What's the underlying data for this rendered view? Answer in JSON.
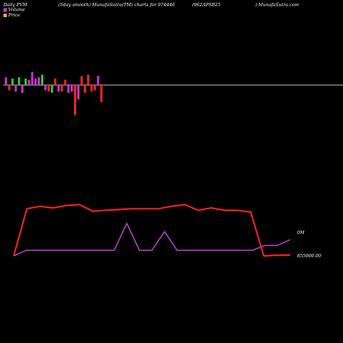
{
  "header": {
    "left": "Daily PVM",
    "middle": "(5day smooth) MunafaSutra(TM) charts for 974446",
    "symbol": "(962APSB25",
    "right": ") MunafaSutra.com"
  },
  "legend": [
    {
      "label": "Volume",
      "color": "#cc33cc"
    },
    {
      "label": "Price",
      "color": "#ff9966"
    }
  ],
  "colors": {
    "background": "#000000",
    "baseline": "#cccccc",
    "up": "#cc33cc",
    "down": "#ff2222",
    "neutral": "#33cc33",
    "price_line": "#ff2020",
    "volume_line": "#bb44cc"
  },
  "chart_data": [
    {
      "type": "bar",
      "description_scale": "relative",
      "values": [
        0.6,
        -0.4,
        0.5,
        -0.5,
        0.6,
        -0.6,
        0.5,
        0.4,
        1.0,
        0.5,
        0.6,
        0.8,
        -0.4,
        -0.5,
        -0.6,
        0.5,
        -0.5,
        -0.5,
        0.4,
        -0.6,
        -0.5,
        -2.3,
        -1.1,
        0.7,
        -0.6,
        0.8,
        -0.5,
        -0.4,
        0.7,
        -1.3
      ],
      "bar_colors": [
        "up",
        "down",
        "neutral",
        "up",
        "neutral",
        "up",
        "neutral",
        "up",
        "up",
        "up",
        "up",
        "neutral",
        "up",
        "down",
        "neutral",
        "down",
        "up",
        "down",
        "down",
        "up",
        "up",
        "down",
        "up",
        "down",
        "down",
        "down",
        "down",
        "down",
        "up",
        "down"
      ]
    },
    {
      "type": "line",
      "series": [
        {
          "name": "Price",
          "values": [
            10,
            68,
            71,
            69,
            72,
            73,
            65,
            66,
            67,
            68,
            68,
            68,
            71,
            73,
            66,
            69,
            66,
            66,
            64,
            10,
            11,
            11
          ]
        },
        {
          "name": "Volume",
          "values": [
            10,
            17,
            17,
            17,
            17,
            17,
            17,
            17,
            17,
            50,
            17,
            17,
            40,
            17,
            17,
            17,
            17,
            17,
            17,
            17,
            23,
            23,
            30
          ]
        }
      ],
      "annotations": [
        "0M",
        "855000.00"
      ]
    }
  ]
}
